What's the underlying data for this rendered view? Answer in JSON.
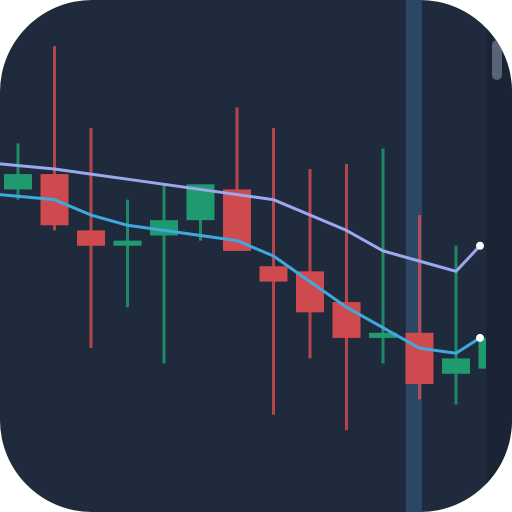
{
  "app": {
    "name": "",
    "background_color": "#1f2a3d",
    "icon_shape": "rounded-square"
  },
  "chart_data": {
    "type": "line",
    "subtype": "candlestick",
    "title": "",
    "xlabel": "",
    "ylabel": "",
    "ylim": [
      0,
      100
    ],
    "grid": false,
    "legend": "none",
    "colors": {
      "up": "#1f9a6e",
      "down": "#cf4a4f",
      "fast_ma": "#3fa9dd",
      "slow_ma": "#9aa8ee",
      "crosshair": "#2b4764"
    },
    "candles": [
      {
        "open": 63,
        "close": 66,
        "high": 72,
        "low": 61
      },
      {
        "open": 66,
        "close": 56,
        "high": 91,
        "low": 55
      },
      {
        "open": 55,
        "close": 52,
        "high": 75,
        "low": 32
      },
      {
        "open": 52,
        "close": 53,
        "high": 61,
        "low": 40
      },
      {
        "open": 54,
        "close": 57,
        "high": 64,
        "low": 29
      },
      {
        "open": 57,
        "close": 64,
        "high": 64,
        "low": 53
      },
      {
        "open": 63,
        "close": 51,
        "high": 79,
        "low": 51
      },
      {
        "open": 48,
        "close": 45,
        "high": 75,
        "low": 19
      },
      {
        "open": 47,
        "close": 39,
        "high": 67,
        "low": 30
      },
      {
        "open": 41,
        "close": 34,
        "high": 68,
        "low": 16
      },
      {
        "open": 34,
        "close": 35,
        "high": 71,
        "low": 29
      },
      {
        "open": 35,
        "close": 25,
        "high": 58,
        "low": 22
      },
      {
        "open": 27,
        "close": 30,
        "high": 52,
        "low": 21
      },
      {
        "open": 28,
        "close": 34,
        "high": 34,
        "low": 28
      }
    ],
    "series": [
      {
        "values": [
          68,
          67,
          66,
          65,
          64,
          63,
          62,
          61,
          58,
          55,
          51,
          49,
          47,
          52
        ]
      },
      {
        "values": [
          62,
          61,
          58,
          56,
          55,
          54,
          53,
          50,
          45,
          40,
          36,
          32,
          31,
          34
        ]
      }
    ],
    "crosshair_candle_index": 11
  }
}
